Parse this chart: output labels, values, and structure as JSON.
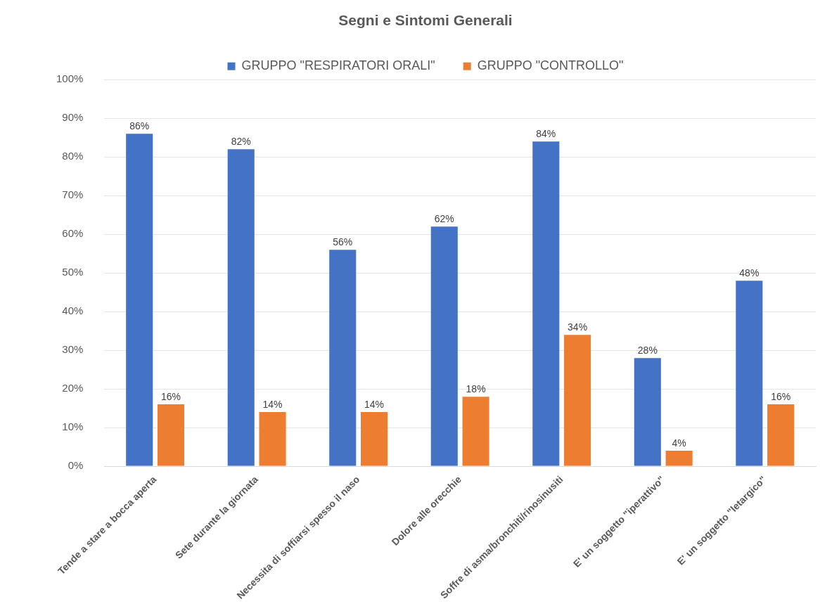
{
  "chart_data": {
    "type": "bar",
    "title": "Segni e Sintomi Generali",
    "categories": [
      "Tende a stare a bocca aperta",
      "Sete durante la giornata",
      "Necessita di soffiarsi spesso il naso",
      "Dolore alle orecchie",
      "Soffre di asma/bronchiti/rinosinusiti",
      "E' un soggetto \"iperattivo\"",
      "E' un soggetto \"letargico\""
    ],
    "series": [
      {
        "name": "GRUPPO \"RESPIRATORI ORALI\"",
        "color": "#4472c4",
        "values": [
          86,
          82,
          56,
          62,
          84,
          28,
          48
        ],
        "value_labels": [
          "86%",
          "82%",
          "56%",
          "62%",
          "84%",
          "28%",
          "48%"
        ]
      },
      {
        "name": "GRUPPO \"CONTROLLO\"",
        "color": "#ed7d31",
        "values": [
          16,
          14,
          14,
          18,
          34,
          4,
          16
        ],
        "value_labels": [
          "16%",
          "14%",
          "14%",
          "18%",
          "34%",
          "4%",
          "16%"
        ]
      }
    ],
    "ylim": [
      0,
      100
    ],
    "yticks": [
      {
        "value": 0,
        "label": "0%"
      },
      {
        "value": 10,
        "label": "10%"
      },
      {
        "value": 20,
        "label": "20%"
      },
      {
        "value": 30,
        "label": "30%"
      },
      {
        "value": 40,
        "label": "40%"
      },
      {
        "value": 50,
        "label": "50%"
      },
      {
        "value": 60,
        "label": "60%"
      },
      {
        "value": 70,
        "label": "70%"
      },
      {
        "value": 80,
        "label": "80%"
      },
      {
        "value": 90,
        "label": "90%"
      },
      {
        "value": 100,
        "label": "100%"
      }
    ],
    "grid": "y",
    "legend": "top"
  }
}
